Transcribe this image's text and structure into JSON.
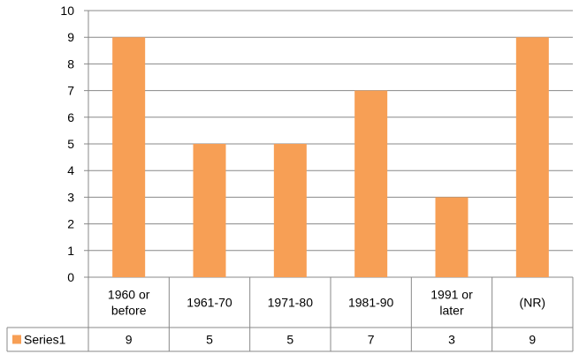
{
  "chart_data": {
    "type": "bar",
    "categories": [
      [
        "1960 or",
        "before"
      ],
      [
        "1961-70"
      ],
      [
        "1971-80"
      ],
      [
        "1981-90"
      ],
      [
        "1991 or",
        "later"
      ],
      [
        "(NR)"
      ]
    ],
    "series": [
      {
        "name": "Series1",
        "values": [
          9,
          5,
          5,
          7,
          3,
          9
        ],
        "color": "#F79F55"
      }
    ],
    "ylim": [
      0,
      10
    ],
    "yticks": [
      0,
      1,
      2,
      3,
      4,
      5,
      6,
      7,
      8,
      9,
      10
    ],
    "grid": true,
    "legend": "data-table",
    "data_table": true
  }
}
